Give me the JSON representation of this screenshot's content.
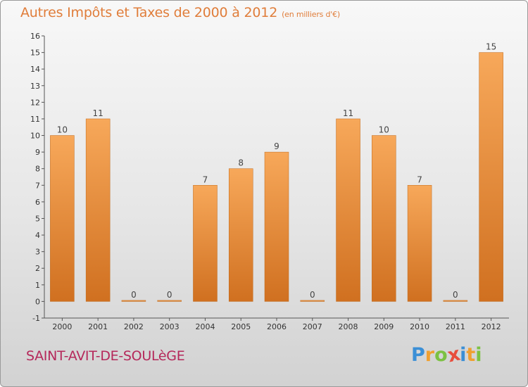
{
  "header": {
    "title": "Autres Impôts et Taxes de 2000 à 2012",
    "subtitle": "(en milliers d'€)"
  },
  "footer": {
    "commune": "SAINT-AVIT-DE-SOULèGE",
    "logo_letters": [
      {
        "char": "P",
        "color": "#3b8fd6"
      },
      {
        "char": "r",
        "color": "#f0a030"
      },
      {
        "char": "o",
        "color": "#7cc142"
      },
      {
        "char": "x",
        "color": "#e84d3d"
      },
      {
        "char": "i",
        "color": "#3b8fd6"
      },
      {
        "char": "t",
        "color": "#f0a030"
      },
      {
        "char": "i",
        "color": "#7cc142"
      }
    ]
  },
  "colors": {
    "bar_light": "#f7a85a",
    "bar_dark": "#d07020",
    "title": "#e07d3a",
    "commune": "#b5285a"
  },
  "chart_data": {
    "type": "bar",
    "title": "Autres Impôts et Taxes de 2000 à 2012",
    "subtitle": "(en milliers d'€)",
    "categories": [
      "2000",
      "2001",
      "2002",
      "2003",
      "2004",
      "2005",
      "2006",
      "2007",
      "2008",
      "2009",
      "2010",
      "2011",
      "2012"
    ],
    "values": [
      10,
      11,
      0,
      0,
      7,
      8,
      9,
      0,
      11,
      10,
      7,
      0,
      15
    ],
    "value_labels": [
      "10",
      "11",
      "0",
      "0",
      "7",
      "8",
      "9",
      "0",
      "11",
      "10",
      "7",
      "0",
      "15"
    ],
    "ylim": [
      -1,
      16
    ],
    "yticks": [
      "-1",
      "0",
      "1",
      "2",
      "3",
      "4",
      "5",
      "6",
      "7",
      "8",
      "9",
      "10",
      "11",
      "12",
      "13",
      "14",
      "15",
      "16"
    ],
    "grid": false
  }
}
